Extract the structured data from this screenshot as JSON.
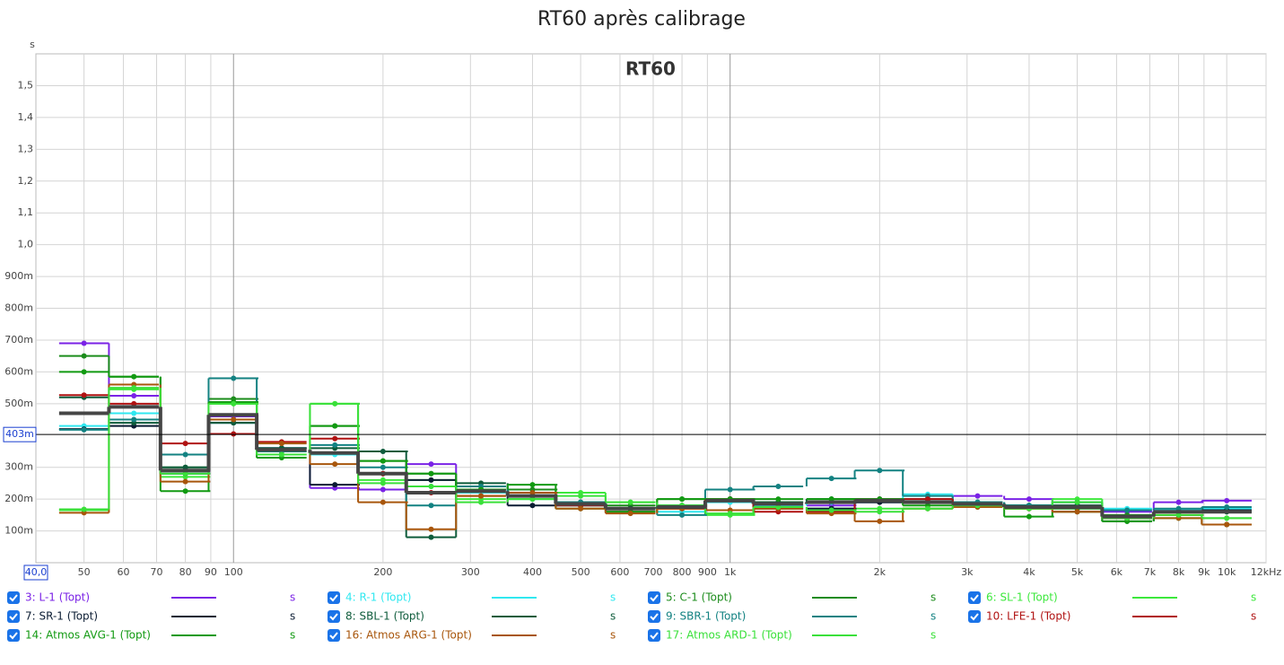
{
  "chart_data": {
    "type": "step",
    "title": "RT60 après calibrage",
    "subtitle": "RT60",
    "y_unit": "s",
    "log_x": true,
    "grid": true,
    "xlim": [
      40,
      12000
    ],
    "ylim": [
      0,
      1.6
    ],
    "xticks": [
      50,
      60,
      70,
      80,
      90,
      100,
      200,
      300,
      400,
      500,
      600,
      700,
      800,
      900,
      {
        "value": 1000,
        "label": "1k"
      },
      {
        "value": 2000,
        "label": "2k"
      },
      {
        "value": 3000,
        "label": "3k"
      },
      {
        "value": 4000,
        "label": "4k"
      },
      {
        "value": 5000,
        "label": "5k"
      },
      {
        "value": 6000,
        "label": "6k"
      },
      {
        "value": 7000,
        "label": "7k"
      },
      {
        "value": 8000,
        "label": "8k"
      },
      {
        "value": 9000,
        "label": "9k"
      },
      {
        "value": 10000,
        "label": "10k"
      },
      {
        "value": 12000,
        "label": "12kHz"
      }
    ],
    "yticks": [
      {
        "value": 0.1,
        "label": "100m"
      },
      {
        "value": 0.2,
        "label": "200m"
      },
      {
        "value": 0.3,
        "label": "300m"
      },
      {
        "value": 0.5,
        "label": "500m"
      },
      {
        "value": 0.6,
        "label": "600m"
      },
      {
        "value": 0.7,
        "label": "700m"
      },
      {
        "value": 0.8,
        "label": "800m"
      },
      {
        "value": 0.9,
        "label": "900m"
      },
      {
        "value": 1.0,
        "label": "1,0"
      },
      {
        "value": 1.1,
        "label": "1,1"
      },
      {
        "value": 1.2,
        "label": "1,2"
      },
      {
        "value": 1.3,
        "label": "1,3"
      },
      {
        "value": 1.4,
        "label": "1,4"
      },
      {
        "value": 1.5,
        "label": "1,5"
      }
    ],
    "cursor_y": {
      "value": 0.403,
      "label": "403m"
    },
    "cursor_x": {
      "value": 40,
      "label": "40,0"
    },
    "x": [
      50,
      63,
      80,
      100,
      125,
      160,
      200,
      250,
      315,
      400,
      500,
      630,
      800,
      1000,
      1250,
      1600,
      2000,
      2500,
      3150,
      4000,
      5000,
      6300,
      8000,
      10000
    ],
    "series": [
      {
        "name": "3: L-1 (Topt)",
        "unit": "s",
        "color": "#7a22e6",
        "values": [
          0.69,
          0.525,
          0.29,
          0.46,
          0.36,
          0.235,
          0.23,
          0.31,
          0.23,
          0.21,
          0.19,
          0.17,
          0.18,
          0.2,
          0.18,
          0.18,
          0.19,
          0.2,
          0.21,
          0.2,
          0.19,
          0.16,
          0.19,
          0.195
        ]
      },
      {
        "name": "4: R-1 (Topt)",
        "unit": "s",
        "color": "#30e8f0",
        "values": [
          0.43,
          0.47,
          0.28,
          0.44,
          0.36,
          0.34,
          0.28,
          0.24,
          0.22,
          0.2,
          0.18,
          0.17,
          0.16,
          0.19,
          0.18,
          0.19,
          0.2,
          0.215,
          0.19,
          0.18,
          0.19,
          0.17,
          0.165,
          0.17
        ]
      },
      {
        "name": "5: C-1 (Topt)",
        "unit": "s",
        "color": "#1c8c1c",
        "values": [
          0.65,
          0.585,
          0.3,
          0.515,
          0.35,
          0.43,
          0.32,
          0.28,
          0.24,
          0.23,
          0.19,
          0.18,
          0.2,
          0.2,
          0.19,
          0.2,
          0.19,
          0.2,
          0.18,
          0.17,
          0.17,
          0.15,
          0.16,
          0.16
        ]
      },
      {
        "name": "6: SL-1 (Topt)",
        "unit": "s",
        "color": "#3ce83c",
        "values": [
          0.165,
          0.545,
          0.27,
          0.5,
          0.34,
          0.5,
          0.26,
          0.26,
          0.2,
          0.2,
          0.22,
          0.19,
          0.18,
          0.15,
          0.175,
          0.17,
          0.17,
          0.17,
          0.175,
          0.18,
          0.2,
          0.14,
          0.15,
          0.14
        ]
      },
      {
        "name": "7: SR-1 (Topt)",
        "unit": "s",
        "color": "#0b1c33",
        "values": [
          0.42,
          0.43,
          0.28,
          0.44,
          0.36,
          0.245,
          0.28,
          0.26,
          0.23,
          0.18,
          0.18,
          0.17,
          0.17,
          0.2,
          0.17,
          0.17,
          0.19,
          0.19,
          0.18,
          0.18,
          0.18,
          0.14,
          0.16,
          0.165
        ]
      },
      {
        "name": "8: SBL-1 (Topt)",
        "unit": "s",
        "color": "#0f5c3c",
        "values": [
          0.52,
          0.44,
          0.3,
          0.44,
          0.36,
          0.36,
          0.35,
          0.08,
          0.25,
          0.22,
          0.19,
          0.17,
          0.18,
          0.2,
          0.19,
          0.2,
          0.2,
          0.2,
          0.19,
          0.18,
          0.18,
          0.13,
          0.16,
          0.16
        ]
      },
      {
        "name": "9: SBR-1 (Topt)",
        "unit": "s",
        "color": "#138282",
        "values": [
          0.418,
          0.45,
          0.34,
          0.58,
          0.35,
          0.37,
          0.3,
          0.18,
          0.24,
          0.21,
          0.19,
          0.16,
          0.15,
          0.23,
          0.24,
          0.265,
          0.29,
          0.21,
          0.19,
          0.18,
          0.19,
          0.165,
          0.17,
          0.175
        ]
      },
      {
        "name": "10: LFE-1 (Topt)",
        "unit": "s",
        "color": "#b01212",
        "values": [
          0.527,
          0.5,
          0.375,
          0.405,
          0.38,
          0.39,
          0.28,
          0.22,
          0.21,
          0.21,
          0.18,
          0.16,
          0.17,
          0.2,
          0.16,
          0.16,
          0.2,
          0.2,
          0.18,
          0.17,
          0.16,
          0.14,
          0.15,
          0.12
        ]
      },
      {
        "name": "14: Atmos AVG-1 (Topt)",
        "unit": "s",
        "color": "#129a12",
        "values": [
          0.6,
          0.585,
          0.225,
          0.505,
          0.33,
          0.43,
          0.32,
          0.28,
          0.23,
          0.245,
          0.17,
          0.16,
          0.2,
          0.2,
          0.2,
          0.2,
          0.2,
          0.18,
          0.18,
          0.145,
          0.16,
          0.13,
          0.14,
          0.12
        ]
      },
      {
        "name": "16: Atmos ARG-1 (Topt)",
        "unit": "s",
        "color": "#a8560c",
        "values": [
          0.157,
          0.56,
          0.255,
          0.45,
          0.375,
          0.31,
          0.19,
          0.105,
          0.21,
          0.22,
          0.17,
          0.155,
          0.17,
          0.165,
          0.17,
          0.155,
          0.13,
          0.17,
          0.175,
          0.17,
          0.16,
          0.14,
          0.14,
          0.12
        ]
      },
      {
        "name": "17: Atmos ARD-1 (Topt)",
        "unit": "s",
        "color": "#3ae03a",
        "values": [
          0.168,
          0.55,
          0.28,
          0.5,
          0.34,
          0.5,
          0.25,
          0.24,
          0.19,
          0.2,
          0.21,
          0.19,
          0.18,
          0.155,
          0.175,
          0.165,
          0.16,
          0.17,
          0.18,
          0.17,
          0.19,
          0.14,
          0.15,
          0.14
        ]
      },
      {
        "color": "#454545",
        "markers": false,
        "width": 4,
        "values": [
          0.47,
          0.49,
          0.29,
          0.465,
          0.355,
          0.345,
          0.28,
          0.22,
          0.225,
          0.21,
          0.185,
          0.17,
          0.175,
          0.195,
          0.185,
          0.19,
          0.195,
          0.19,
          0.185,
          0.175,
          0.175,
          0.145,
          0.16,
          0.16
        ]
      }
    ]
  }
}
